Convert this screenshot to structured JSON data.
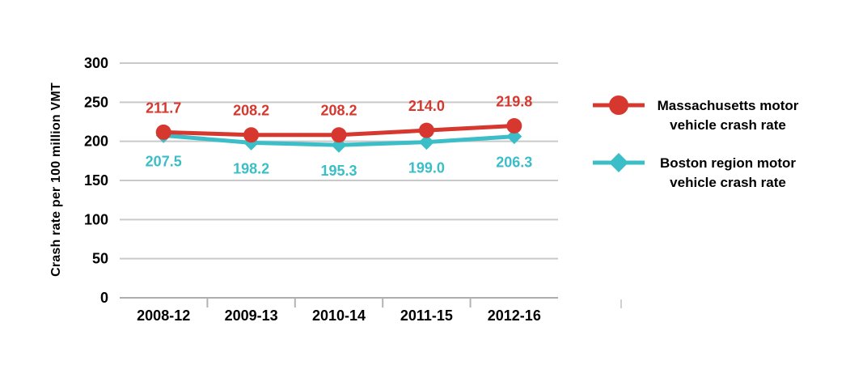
{
  "chart_data": {
    "type": "line",
    "title": "",
    "categories": [
      "2008-12",
      "2009-13",
      "2010-14",
      "2011-15",
      "2012-16"
    ],
    "series": [
      {
        "name": "Massachusetts motor vehicle crash rate",
        "values": [
          211.7,
          208.2,
          208.2,
          214.0,
          219.8
        ],
        "labels": [
          "211.7",
          "208.2",
          "208.2",
          "214.0",
          "219.8"
        ],
        "color": "#d6382f",
        "marker": "circle",
        "label_position": "above"
      },
      {
        "name": "Boston region motor vehicle crash rate",
        "values": [
          207.5,
          198.2,
          195.3,
          199.0,
          206.3
        ],
        "labels": [
          "207.5",
          "198.2",
          "195.3",
          "199.0",
          "206.3"
        ],
        "color": "#3bbec7",
        "marker": "diamond",
        "label_position": "below"
      }
    ],
    "xlabel": "",
    "ylabel": "Crash rate per 100 million VMT",
    "ylim": [
      0,
      300
    ],
    "yticks": [
      0,
      50,
      100,
      150,
      200,
      250,
      300
    ],
    "grid": true,
    "legend_position": "right",
    "legend": [
      {
        "label_lines": [
          "Massachusetts motor",
          "vehicle crash rate"
        ],
        "marker": "circle",
        "color": "#d6382f"
      },
      {
        "label_lines": [
          "Boston region motor",
          "vehicle crash rate"
        ],
        "marker": "diamond",
        "color": "#3bbec7"
      }
    ],
    "colors": {
      "grid": "#c9c9c9",
      "axis": "#aeaeae",
      "tick": "#b3b3b3",
      "text": "#000000"
    }
  }
}
